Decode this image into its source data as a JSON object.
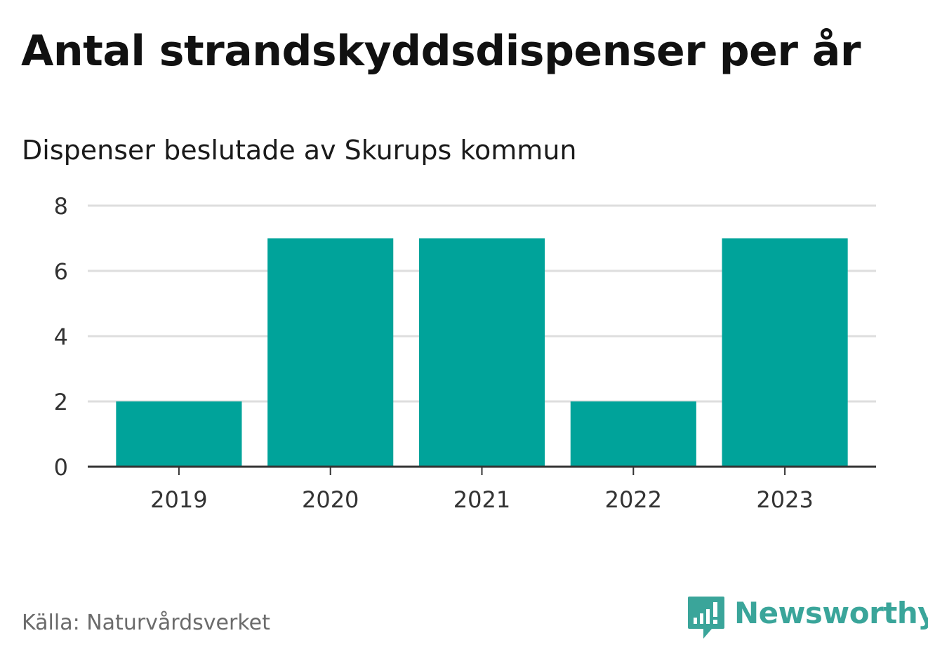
{
  "chart_data": {
    "type": "bar",
    "title": "Antal strandskyddsdispenser per år",
    "subtitle": "Dispenser beslutade av Skurups kommun",
    "categories": [
      "2019",
      "2020",
      "2021",
      "2022",
      "2023"
    ],
    "values": [
      2,
      7,
      7,
      2,
      7
    ],
    "ylim": [
      0,
      8
    ],
    "yticks": [
      0,
      2,
      4,
      6,
      8
    ],
    "xlabel": "",
    "ylabel": "",
    "grid": true,
    "bar_color": "#00a39a",
    "source": "Källa: Naturvårdsverket"
  },
  "brand": {
    "name": "Newsworthy",
    "color": "#3aa59a",
    "icon": "newsworthy-logo-icon"
  }
}
